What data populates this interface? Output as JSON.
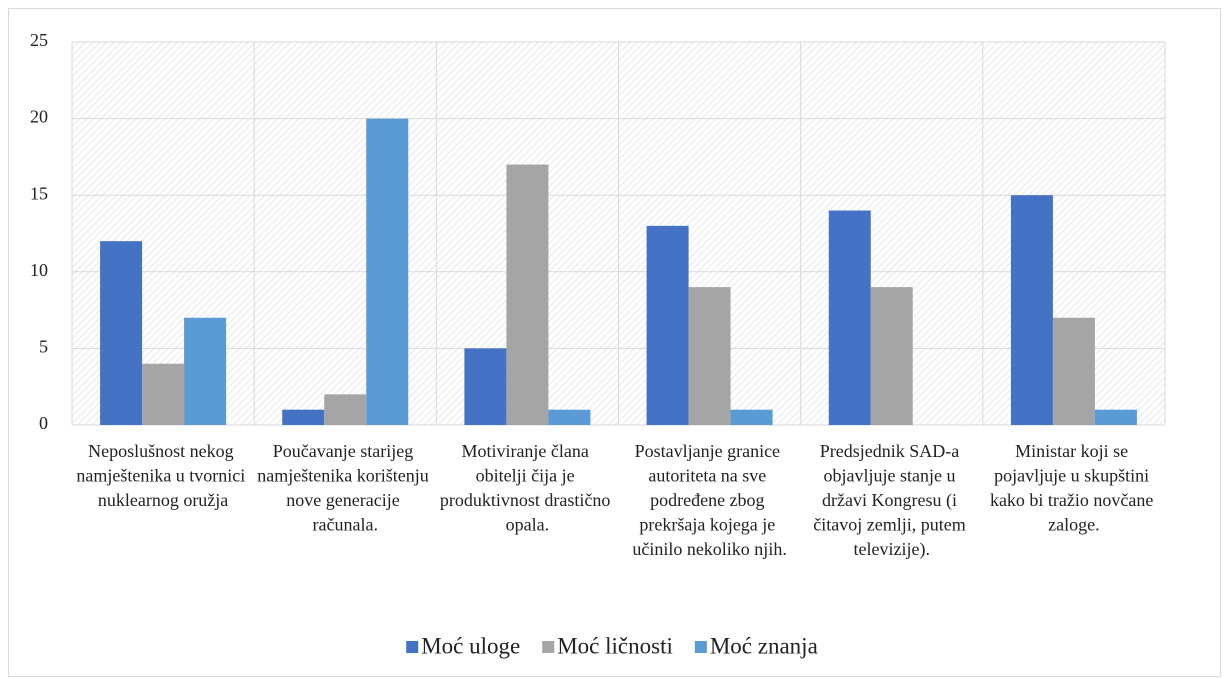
{
  "chart_data": {
    "type": "bar",
    "categories": [
      "Neposlušnost nekog namještenika u tvornici nuklearnog oružja",
      "Poučavanje starijeg namještenika korištenju nove generacije računala.",
      "Motiviranje člana obitelji čija je produktivnost drastično opala.",
      "Postavljanje granice autoriteta na sve podređene zbog prekršaja kojega je učinilo nekoliko njih.",
      "Predsjednik SAD-a objavljuje stanje u državi Kongresu (i čitavoj zemlji, putem televizije).",
      "Ministar koji se pojavljuje u skupštini kako bi tražio novčane zaloge."
    ],
    "series": [
      {
        "name": "Moć uloge",
        "color": "#4472c4",
        "values": [
          12,
          1,
          5,
          13,
          14,
          15
        ]
      },
      {
        "name": "Moć ličnosti",
        "color": "#a5a5a5",
        "values": [
          4,
          2,
          17,
          9,
          9,
          7
        ]
      },
      {
        "name": "Moć znanja",
        "color": "#5b9bd5",
        "values": [
          7,
          20,
          1,
          1,
          0,
          1
        ]
      }
    ],
    "ylim": [
      0,
      25
    ],
    "yticks": [
      0,
      5,
      10,
      15,
      20,
      25
    ],
    "grid": true,
    "legend": "bottom"
  }
}
